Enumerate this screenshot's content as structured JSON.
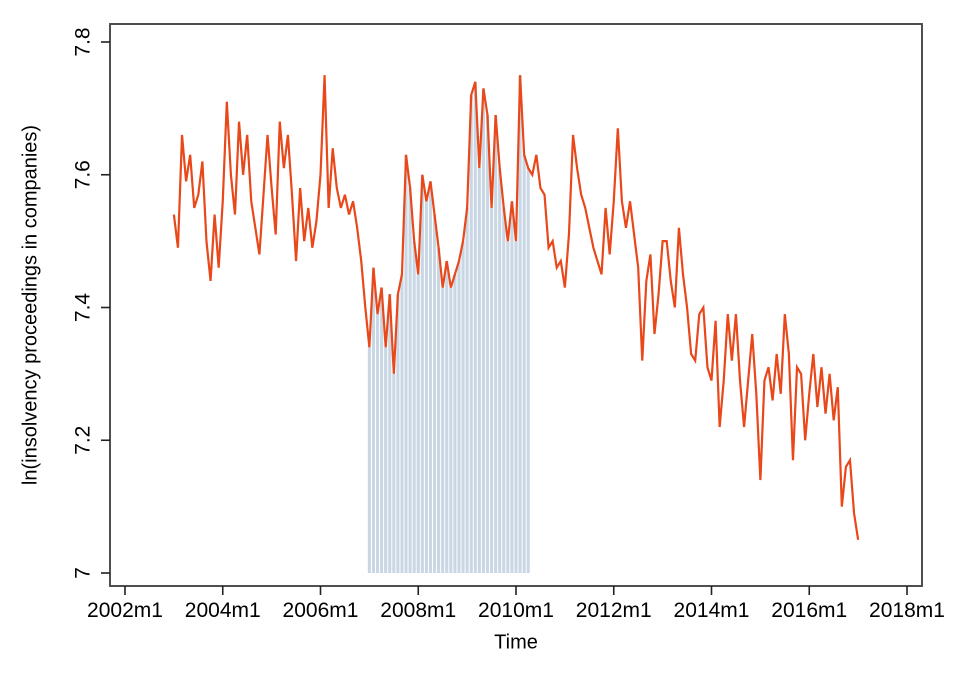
{
  "figure": {
    "background": "#ffffff"
  },
  "chart_data": {
    "type": "line",
    "title": "",
    "xlabel": "Time",
    "ylabel": "ln(insolvency proceedings in companies)",
    "x_tick_labels": [
      "2002m1",
      "2004m1",
      "2006m1",
      "2008m1",
      "2010m1",
      "2012m1",
      "2014m1",
      "2016m1",
      "2018m1"
    ],
    "y_tick_labels": [
      "7",
      "7.2",
      "7.4",
      "7.6",
      "7.8"
    ],
    "y_tick_values": [
      7,
      7.2,
      7.4,
      7.6,
      7.8
    ],
    "ylim": [
      7,
      7.8
    ],
    "xlim": [
      "2002m1",
      "2018m1"
    ],
    "grid": false,
    "legend": "none",
    "line_color": "#e8481a",
    "shading_color": "#c9d6e4",
    "axis_color": "#4f4f4f",
    "tick_color": "#222222",
    "text_color": "#000000",
    "series": [
      {
        "name": "ln(insolvency proceedings in companies)",
        "frequency": "monthly",
        "start": "2003m1",
        "end": "2017m1",
        "values": [
          7.54,
          7.49,
          7.66,
          7.59,
          7.63,
          7.55,
          7.57,
          7.62,
          7.5,
          7.44,
          7.54,
          7.46,
          7.56,
          7.71,
          7.6,
          7.54,
          7.68,
          7.6,
          7.66,
          7.56,
          7.52,
          7.48,
          7.57,
          7.66,
          7.58,
          7.51,
          7.68,
          7.61,
          7.66,
          7.57,
          7.47,
          7.58,
          7.5,
          7.55,
          7.49,
          7.53,
          7.6,
          7.75,
          7.55,
          7.64,
          7.58,
          7.55,
          7.57,
          7.54,
          7.56,
          7.52,
          7.47,
          7.4,
          7.34,
          7.46,
          7.39,
          7.43,
          7.34,
          7.42,
          7.3,
          7.42,
          7.45,
          7.63,
          7.58,
          7.5,
          7.45,
          7.6,
          7.56,
          7.59,
          7.54,
          7.49,
          7.43,
          7.47,
          7.43,
          7.45,
          7.47,
          7.5,
          7.55,
          7.72,
          7.74,
          7.61,
          7.73,
          7.69,
          7.55,
          7.69,
          7.61,
          7.55,
          7.5,
          7.56,
          7.5,
          7.75,
          7.63,
          7.61,
          7.6,
          7.63,
          7.58,
          7.57,
          7.49,
          7.5,
          7.46,
          7.47,
          7.43,
          7.51,
          7.66,
          7.61,
          7.57,
          7.55,
          7.52,
          7.49,
          7.47,
          7.45,
          7.55,
          7.48,
          7.56,
          7.67,
          7.56,
          7.52,
          7.56,
          7.51,
          7.46,
          7.32,
          7.44,
          7.48,
          7.36,
          7.42,
          7.5,
          7.5,
          7.44,
          7.4,
          7.52,
          7.45,
          7.4,
          7.33,
          7.32,
          7.39,
          7.4,
          7.31,
          7.29,
          7.38,
          7.22,
          7.29,
          7.39,
          7.32,
          7.39,
          7.29,
          7.22,
          7.29,
          7.36,
          7.27,
          7.14,
          7.29,
          7.31,
          7.26,
          7.33,
          7.27,
          7.39,
          7.33,
          7.17,
          7.31,
          7.3,
          7.2,
          7.27,
          7.33,
          7.25,
          7.31,
          7.24,
          7.3,
          7.23,
          7.28,
          7.1,
          7.16,
          7.17,
          7.09,
          7.05
        ]
      }
    ],
    "shaded_region": {
      "style": "vertical-bars-under-line",
      "start": "2007m1",
      "end": "2010m4",
      "base": 7.0
    }
  }
}
